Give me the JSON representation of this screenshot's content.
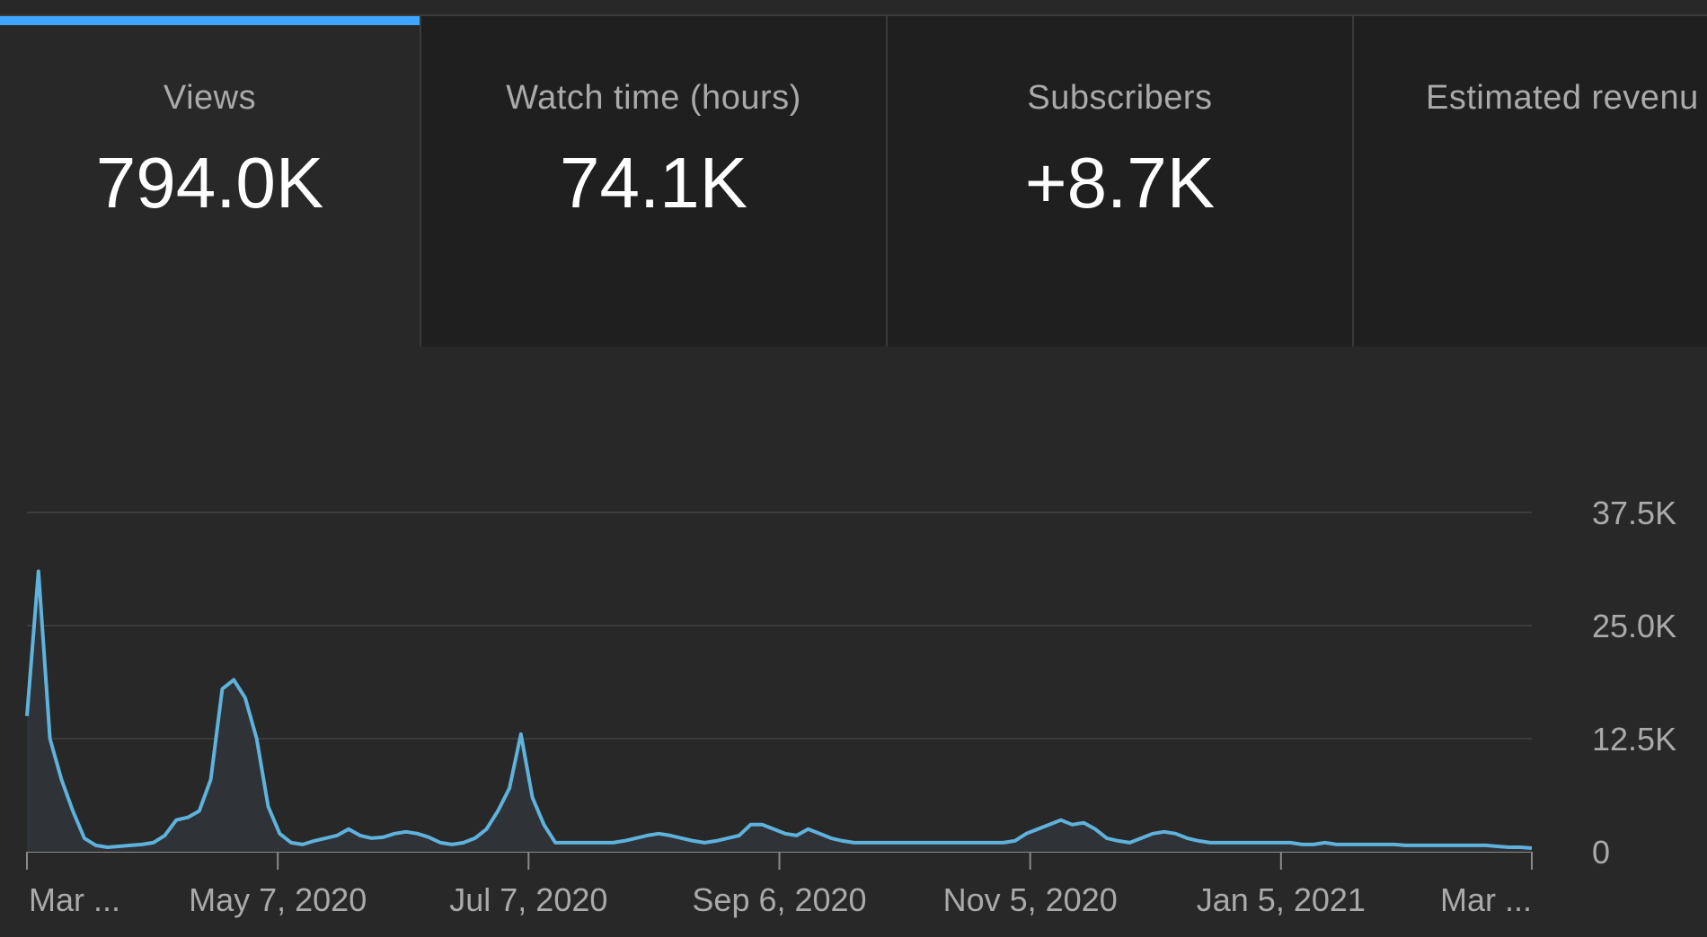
{
  "tabs": [
    {
      "label": "Views",
      "value": "794.0K",
      "active": true
    },
    {
      "label": "Watch time (hours)",
      "value": "74.1K",
      "active": false
    },
    {
      "label": "Subscribers",
      "value": "+8.7K",
      "active": false
    },
    {
      "label": "Estimated revenu",
      "value": "",
      "active": false
    }
  ],
  "colors": {
    "accent": "#3ea6ff",
    "line": "#5fb2dc",
    "area": "#2f3338",
    "grid": "#3c3c3c"
  },
  "chart_data": {
    "type": "area",
    "x_tick_labels": [
      "Mar ...",
      "May 7, 2020",
      "Jul 7, 2020",
      "Sep 6, 2020",
      "Nov 5, 2020",
      "Jan 5, 2021",
      "Mar ..."
    ],
    "y_tick_labels": [
      "0",
      "12.5K",
      "25.0K",
      "37.5K"
    ],
    "y_ticks": [
      0,
      12500,
      25000,
      37500
    ],
    "ylim": [
      0,
      37500
    ],
    "x_range": [
      "2020-03-07",
      "2021-03-07"
    ],
    "grid": true,
    "series": [
      {
        "values": [
          15000,
          31000,
          12500,
          8000,
          4500,
          1500,
          700,
          500,
          600,
          700,
          800,
          1000,
          1800,
          3500,
          3800,
          4500,
          8000,
          18000,
          19000,
          17000,
          12500,
          5000,
          2000,
          1000,
          800,
          1200,
          1500,
          1800,
          2500,
          1800,
          1500,
          1600,
          2000,
          2200,
          2000,
          1600,
          1000,
          800,
          1000,
          1500,
          2500,
          4500,
          7000,
          13000,
          6000,
          3000,
          1000,
          1000,
          1000,
          1000,
          1000,
          1000,
          1200,
          1500,
          1800,
          2000,
          1800,
          1500,
          1200,
          1000,
          1200,
          1500,
          1800,
          3000,
          3000,
          2500,
          2000,
          1800,
          2500,
          2000,
          1500,
          1200,
          1000,
          1000,
          1000,
          1000,
          1000,
          1000,
          1000,
          1000,
          1000,
          1000,
          1000,
          1000,
          1000,
          1000,
          1200,
          2000,
          2500,
          3000,
          3500,
          3000,
          3200,
          2500,
          1500,
          1200,
          1000,
          1500,
          2000,
          2200,
          2000,
          1500,
          1200,
          1000,
          1000,
          1000,
          1000,
          1000,
          1000,
          1000,
          1000,
          800,
          800,
          1000,
          800,
          800,
          800,
          800,
          800,
          800,
          700,
          700,
          700,
          700,
          700,
          700,
          700,
          700,
          600,
          500,
          500,
          400
        ]
      }
    ]
  }
}
